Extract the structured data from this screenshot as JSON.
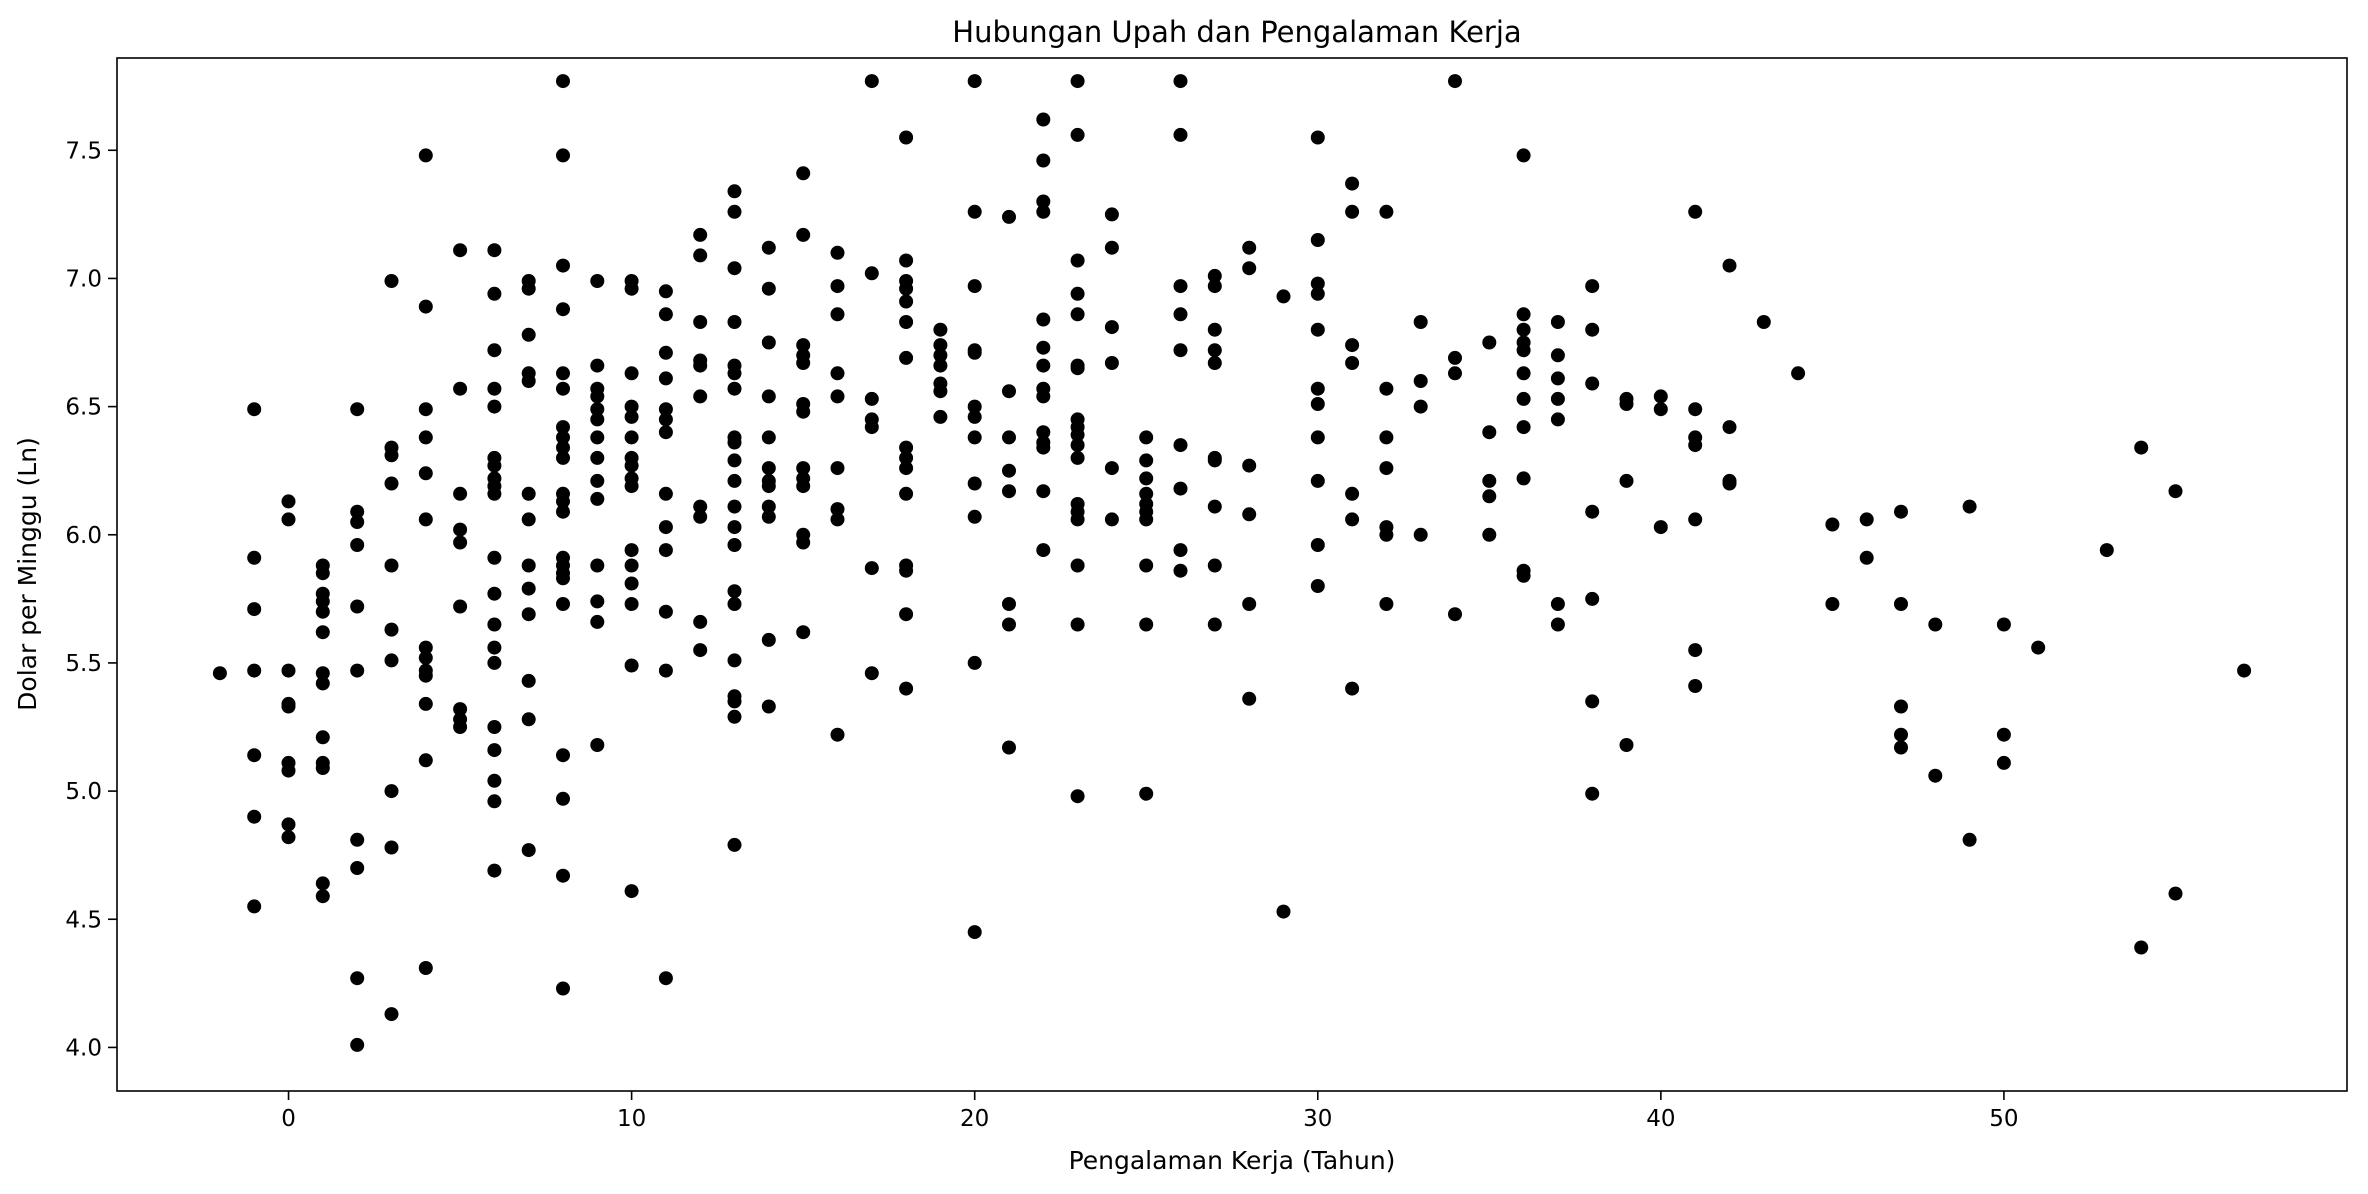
{
  "chart_data": {
    "type": "scatter",
    "title": "Hubungan Upah dan Pengalaman Kerja",
    "xlabel": "Pengalaman Kerja (Tahun)",
    "ylabel": "Dolar per Minggu (Ln)",
    "xlim": [
      -5,
      60
    ],
    "ylim": [
      3.83,
      7.86
    ],
    "xticks": [
      0,
      10,
      20,
      30,
      40,
      50
    ],
    "yticks": [
      4.0,
      4.5,
      5.0,
      5.5,
      6.0,
      6.5,
      7.0,
      7.5
    ],
    "grid": false,
    "legend": "none",
    "marker_color": "#000000",
    "points": [
      [
        -2,
        5.46
      ],
      [
        -1,
        6.49
      ],
      [
        -1,
        5.91
      ],
      [
        -1,
        5.71
      ],
      [
        -1,
        5.47
      ],
      [
        -1,
        5.14
      ],
      [
        -1,
        4.9
      ],
      [
        -1,
        4.55
      ],
      [
        0,
        6.13
      ],
      [
        0,
        6.06
      ],
      [
        0,
        5.47
      ],
      [
        0,
        5.34
      ],
      [
        0,
        5.33
      ],
      [
        0,
        5.11
      ],
      [
        0,
        5.08
      ],
      [
        0,
        4.87
      ],
      [
        0,
        4.82
      ],
      [
        1,
        5.88
      ],
      [
        1,
        5.85
      ],
      [
        1,
        5.77
      ],
      [
        1,
        5.74
      ],
      [
        1,
        5.7
      ],
      [
        1,
        5.62
      ],
      [
        1,
        5.46
      ],
      [
        1,
        5.42
      ],
      [
        1,
        5.21
      ],
      [
        1,
        5.11
      ],
      [
        1,
        5.09
      ],
      [
        1,
        4.64
      ],
      [
        1,
        4.59
      ],
      [
        2,
        6.49
      ],
      [
        2,
        6.09
      ],
      [
        2,
        6.05
      ],
      [
        2,
        5.96
      ],
      [
        2,
        5.72
      ],
      [
        2,
        5.47
      ],
      [
        2,
        4.81
      ],
      [
        2,
        4.7
      ],
      [
        2,
        4.27
      ],
      [
        2,
        4.01
      ],
      [
        3,
        6.99
      ],
      [
        3,
        6.34
      ],
      [
        3,
        6.31
      ],
      [
        3,
        6.2
      ],
      [
        3,
        5.88
      ],
      [
        3,
        5.63
      ],
      [
        3,
        5.51
      ],
      [
        3,
        5.0
      ],
      [
        3,
        4.78
      ],
      [
        3,
        4.13
      ],
      [
        4,
        7.48
      ],
      [
        4,
        6.89
      ],
      [
        4,
        6.49
      ],
      [
        4,
        6.38
      ],
      [
        4,
        6.24
      ],
      [
        4,
        6.06
      ],
      [
        4,
        5.56
      ],
      [
        4,
        5.52
      ],
      [
        4,
        5.47
      ],
      [
        4,
        5.45
      ],
      [
        4,
        5.34
      ],
      [
        4,
        5.12
      ],
      [
        4,
        4.31
      ],
      [
        5,
        7.11
      ],
      [
        5,
        6.57
      ],
      [
        5,
        6.16
      ],
      [
        5,
        6.02
      ],
      [
        5,
        5.97
      ],
      [
        5,
        5.72
      ],
      [
        5,
        5.32
      ],
      [
        5,
        5.28
      ],
      [
        5,
        5.25
      ],
      [
        6,
        7.11
      ],
      [
        6,
        6.94
      ],
      [
        6,
        6.72
      ],
      [
        6,
        6.57
      ],
      [
        6,
        6.5
      ],
      [
        6,
        6.3
      ],
      [
        6,
        6.27
      ],
      [
        6,
        6.22
      ],
      [
        6,
        6.19
      ],
      [
        6,
        6.16
      ],
      [
        6,
        5.91
      ],
      [
        6,
        5.77
      ],
      [
        6,
        5.65
      ],
      [
        6,
        5.56
      ],
      [
        6,
        5.5
      ],
      [
        6,
        5.25
      ],
      [
        6,
        5.16
      ],
      [
        6,
        5.04
      ],
      [
        6,
        4.96
      ],
      [
        6,
        4.69
      ],
      [
        7,
        6.99
      ],
      [
        7,
        6.96
      ],
      [
        7,
        6.78
      ],
      [
        7,
        6.63
      ],
      [
        7,
        6.6
      ],
      [
        7,
        6.16
      ],
      [
        7,
        6.06
      ],
      [
        7,
        5.88
      ],
      [
        7,
        5.79
      ],
      [
        7,
        5.69
      ],
      [
        7,
        5.43
      ],
      [
        7,
        5.28
      ],
      [
        7,
        4.77
      ],
      [
        8,
        7.77
      ],
      [
        8,
        7.48
      ],
      [
        8,
        7.05
      ],
      [
        8,
        6.88
      ],
      [
        8,
        6.63
      ],
      [
        8,
        6.57
      ],
      [
        8,
        6.42
      ],
      [
        8,
        6.38
      ],
      [
        8,
        6.34
      ],
      [
        8,
        6.3
      ],
      [
        8,
        6.16
      ],
      [
        8,
        6.13
      ],
      [
        8,
        6.09
      ],
      [
        8,
        5.91
      ],
      [
        8,
        5.88
      ],
      [
        8,
        5.85
      ],
      [
        8,
        5.83
      ],
      [
        8,
        5.73
      ],
      [
        8,
        5.14
      ],
      [
        8,
        4.97
      ],
      [
        8,
        4.67
      ],
      [
        8,
        4.23
      ],
      [
        9,
        6.99
      ],
      [
        9,
        6.66
      ],
      [
        9,
        6.57
      ],
      [
        9,
        6.54
      ],
      [
        9,
        6.49
      ],
      [
        9,
        6.45
      ],
      [
        9,
        6.38
      ],
      [
        9,
        6.3
      ],
      [
        9,
        6.21
      ],
      [
        9,
        6.14
      ],
      [
        9,
        5.88
      ],
      [
        9,
        5.74
      ],
      [
        9,
        5.66
      ],
      [
        9,
        5.18
      ],
      [
        10,
        6.99
      ],
      [
        10,
        6.96
      ],
      [
        10,
        6.63
      ],
      [
        10,
        6.5
      ],
      [
        10,
        6.46
      ],
      [
        10,
        6.38
      ],
      [
        10,
        6.3
      ],
      [
        10,
        6.27
      ],
      [
        10,
        6.22
      ],
      [
        10,
        6.19
      ],
      [
        10,
        5.94
      ],
      [
        10,
        5.88
      ],
      [
        10,
        5.81
      ],
      [
        10,
        5.73
      ],
      [
        10,
        5.49
      ],
      [
        10,
        4.61
      ],
      [
        11,
        6.95
      ],
      [
        11,
        6.86
      ],
      [
        11,
        6.71
      ],
      [
        11,
        6.61
      ],
      [
        11,
        6.49
      ],
      [
        11,
        6.45
      ],
      [
        11,
        6.4
      ],
      [
        11,
        6.16
      ],
      [
        11,
        6.03
      ],
      [
        11,
        5.94
      ],
      [
        11,
        5.7
      ],
      [
        11,
        5.47
      ],
      [
        11,
        4.27
      ],
      [
        12,
        7.17
      ],
      [
        12,
        7.09
      ],
      [
        12,
        6.83
      ],
      [
        12,
        6.68
      ],
      [
        12,
        6.66
      ],
      [
        12,
        6.54
      ],
      [
        12,
        6.11
      ],
      [
        12,
        6.07
      ],
      [
        12,
        5.66
      ],
      [
        12,
        5.55
      ],
      [
        13,
        7.34
      ],
      [
        13,
        7.26
      ],
      [
        13,
        7.04
      ],
      [
        13,
        6.83
      ],
      [
        13,
        6.66
      ],
      [
        13,
        6.63
      ],
      [
        13,
        6.57
      ],
      [
        13,
        6.38
      ],
      [
        13,
        6.36
      ],
      [
        13,
        6.29
      ],
      [
        13,
        6.21
      ],
      [
        13,
        6.11
      ],
      [
        13,
        6.03
      ],
      [
        13,
        5.96
      ],
      [
        13,
        5.78
      ],
      [
        13,
        5.73
      ],
      [
        13,
        5.51
      ],
      [
        13,
        5.37
      ],
      [
        13,
        5.35
      ],
      [
        13,
        5.29
      ],
      [
        13,
        4.79
      ],
      [
        14,
        7.12
      ],
      [
        14,
        6.96
      ],
      [
        14,
        6.75
      ],
      [
        14,
        6.54
      ],
      [
        14,
        6.38
      ],
      [
        14,
        6.26
      ],
      [
        14,
        6.21
      ],
      [
        14,
        6.19
      ],
      [
        14,
        6.11
      ],
      [
        14,
        6.07
      ],
      [
        14,
        5.59
      ],
      [
        14,
        5.33
      ],
      [
        15,
        7.41
      ],
      [
        15,
        7.17
      ],
      [
        15,
        6.74
      ],
      [
        15,
        6.7
      ],
      [
        15,
        6.67
      ],
      [
        15,
        6.51
      ],
      [
        15,
        6.48
      ],
      [
        15,
        6.26
      ],
      [
        15,
        6.22
      ],
      [
        15,
        6.19
      ],
      [
        15,
        6.0
      ],
      [
        15,
        5.97
      ],
      [
        15,
        5.62
      ],
      [
        16,
        7.1
      ],
      [
        16,
        6.97
      ],
      [
        16,
        6.86
      ],
      [
        16,
        6.63
      ],
      [
        16,
        6.54
      ],
      [
        16,
        6.26
      ],
      [
        16,
        6.1
      ],
      [
        16,
        6.06
      ],
      [
        16,
        5.22
      ],
      [
        17,
        7.77
      ],
      [
        17,
        7.02
      ],
      [
        17,
        6.53
      ],
      [
        17,
        6.45
      ],
      [
        17,
        6.42
      ],
      [
        17,
        5.87
      ],
      [
        17,
        5.46
      ],
      [
        18,
        7.55
      ],
      [
        18,
        7.07
      ],
      [
        18,
        6.99
      ],
      [
        18,
        6.96
      ],
      [
        18,
        6.91
      ],
      [
        18,
        6.83
      ],
      [
        18,
        6.69
      ],
      [
        18,
        6.34
      ],
      [
        18,
        6.3
      ],
      [
        18,
        6.26
      ],
      [
        18,
        6.16
      ],
      [
        18,
        5.88
      ],
      [
        18,
        5.86
      ],
      [
        18,
        5.69
      ],
      [
        18,
        5.4
      ],
      [
        19,
        6.8
      ],
      [
        19,
        6.74
      ],
      [
        19,
        6.7
      ],
      [
        19,
        6.66
      ],
      [
        19,
        6.59
      ],
      [
        19,
        6.56
      ],
      [
        19,
        6.46
      ],
      [
        20,
        7.77
      ],
      [
        20,
        7.26
      ],
      [
        20,
        6.97
      ],
      [
        20,
        6.72
      ],
      [
        20,
        6.71
      ],
      [
        20,
        6.5
      ],
      [
        20,
        6.46
      ],
      [
        20,
        6.38
      ],
      [
        20,
        6.2
      ],
      [
        20,
        6.07
      ],
      [
        20,
        5.5
      ],
      [
        20,
        4.45
      ],
      [
        21,
        7.24
      ],
      [
        21,
        6.56
      ],
      [
        21,
        6.38
      ],
      [
        21,
        6.25
      ],
      [
        21,
        6.17
      ],
      [
        21,
        5.73
      ],
      [
        21,
        5.65
      ],
      [
        21,
        5.17
      ],
      [
        22,
        7.62
      ],
      [
        22,
        7.46
      ],
      [
        22,
        7.3
      ],
      [
        22,
        7.26
      ],
      [
        22,
        6.84
      ],
      [
        22,
        6.73
      ],
      [
        22,
        6.66
      ],
      [
        22,
        6.57
      ],
      [
        22,
        6.54
      ],
      [
        22,
        6.4
      ],
      [
        22,
        6.36
      ],
      [
        22,
        6.34
      ],
      [
        22,
        6.17
      ],
      [
        22,
        5.94
      ],
      [
        23,
        7.77
      ],
      [
        23,
        7.56
      ],
      [
        23,
        7.07
      ],
      [
        23,
        6.94
      ],
      [
        23,
        6.86
      ],
      [
        23,
        6.66
      ],
      [
        23,
        6.65
      ],
      [
        23,
        6.45
      ],
      [
        23,
        6.42
      ],
      [
        23,
        6.39
      ],
      [
        23,
        6.35
      ],
      [
        23,
        6.3
      ],
      [
        23,
        6.12
      ],
      [
        23,
        6.09
      ],
      [
        23,
        6.06
      ],
      [
        23,
        5.88
      ],
      [
        23,
        5.65
      ],
      [
        23,
        4.98
      ],
      [
        24,
        7.25
      ],
      [
        24,
        7.12
      ],
      [
        24,
        6.81
      ],
      [
        24,
        6.67
      ],
      [
        24,
        6.26
      ],
      [
        24,
        6.06
      ],
      [
        25,
        6.38
      ],
      [
        25,
        6.29
      ],
      [
        25,
        6.22
      ],
      [
        25,
        6.16
      ],
      [
        25,
        6.12
      ],
      [
        25,
        6.09
      ],
      [
        25,
        6.06
      ],
      [
        25,
        5.88
      ],
      [
        25,
        5.65
      ],
      [
        25,
        4.99
      ],
      [
        26,
        7.77
      ],
      [
        26,
        7.56
      ],
      [
        26,
        6.97
      ],
      [
        26,
        6.86
      ],
      [
        26,
        6.72
      ],
      [
        26,
        6.35
      ],
      [
        26,
        6.18
      ],
      [
        26,
        5.94
      ],
      [
        26,
        5.86
      ],
      [
        27,
        7.01
      ],
      [
        27,
        6.97
      ],
      [
        27,
        6.8
      ],
      [
        27,
        6.72
      ],
      [
        27,
        6.67
      ],
      [
        27,
        6.3
      ],
      [
        27,
        6.29
      ],
      [
        27,
        6.11
      ],
      [
        27,
        5.88
      ],
      [
        27,
        5.65
      ],
      [
        28,
        7.12
      ],
      [
        28,
        7.04
      ],
      [
        28,
        6.27
      ],
      [
        28,
        6.08
      ],
      [
        28,
        5.73
      ],
      [
        28,
        5.36
      ],
      [
        29,
        6.93
      ],
      [
        29,
        4.53
      ],
      [
        30,
        7.55
      ],
      [
        30,
        7.15
      ],
      [
        30,
        6.98
      ],
      [
        30,
        6.94
      ],
      [
        30,
        6.8
      ],
      [
        30,
        6.57
      ],
      [
        30,
        6.51
      ],
      [
        30,
        6.38
      ],
      [
        30,
        6.21
      ],
      [
        30,
        5.96
      ],
      [
        30,
        5.8
      ],
      [
        31,
        7.37
      ],
      [
        31,
        7.26
      ],
      [
        31,
        6.74
      ],
      [
        31,
        6.67
      ],
      [
        31,
        6.16
      ],
      [
        31,
        6.06
      ],
      [
        31,
        5.4
      ],
      [
        32,
        7.26
      ],
      [
        32,
        6.57
      ],
      [
        32,
        6.38
      ],
      [
        32,
        6.26
      ],
      [
        32,
        6.03
      ],
      [
        32,
        6.0
      ],
      [
        32,
        5.73
      ],
      [
        33,
        6.83
      ],
      [
        33,
        6.6
      ],
      [
        33,
        6.5
      ],
      [
        33,
        6.0
      ],
      [
        34,
        7.77
      ],
      [
        34,
        6.69
      ],
      [
        34,
        6.63
      ],
      [
        34,
        5.69
      ],
      [
        35,
        6.75
      ],
      [
        35,
        6.4
      ],
      [
        35,
        6.21
      ],
      [
        35,
        6.15
      ],
      [
        35,
        6.0
      ],
      [
        36,
        7.48
      ],
      [
        36,
        6.86
      ],
      [
        36,
        6.8
      ],
      [
        36,
        6.75
      ],
      [
        36,
        6.72
      ],
      [
        36,
        6.63
      ],
      [
        36,
        6.53
      ],
      [
        36,
        6.42
      ],
      [
        36,
        6.22
      ],
      [
        36,
        5.86
      ],
      [
        36,
        5.84
      ],
      [
        37,
        6.83
      ],
      [
        37,
        6.7
      ],
      [
        37,
        6.61
      ],
      [
        37,
        6.53
      ],
      [
        37,
        6.45
      ],
      [
        37,
        5.73
      ],
      [
        37,
        5.65
      ],
      [
        38,
        6.97
      ],
      [
        38,
        6.8
      ],
      [
        38,
        6.59
      ],
      [
        38,
        6.09
      ],
      [
        38,
        5.75
      ],
      [
        38,
        5.35
      ],
      [
        38,
        4.99
      ],
      [
        39,
        6.53
      ],
      [
        39,
        6.51
      ],
      [
        39,
        6.21
      ],
      [
        39,
        5.18
      ],
      [
        40,
        6.54
      ],
      [
        40,
        6.49
      ],
      [
        40,
        6.03
      ],
      [
        41,
        7.26
      ],
      [
        41,
        6.49
      ],
      [
        41,
        6.38
      ],
      [
        41,
        6.35
      ],
      [
        41,
        6.06
      ],
      [
        41,
        5.55
      ],
      [
        41,
        5.41
      ],
      [
        42,
        7.05
      ],
      [
        42,
        6.42
      ],
      [
        42,
        6.21
      ],
      [
        42,
        6.2
      ],
      [
        43,
        6.83
      ],
      [
        44,
        6.63
      ],
      [
        45,
        6.04
      ],
      [
        45,
        5.73
      ],
      [
        46,
        6.06
      ],
      [
        46,
        5.91
      ],
      [
        47,
        6.09
      ],
      [
        47,
        5.73
      ],
      [
        47,
        5.33
      ],
      [
        47,
        5.22
      ],
      [
        47,
        5.17
      ],
      [
        48,
        5.65
      ],
      [
        48,
        5.06
      ],
      [
        49,
        6.11
      ],
      [
        49,
        4.81
      ],
      [
        50,
        5.65
      ],
      [
        50,
        5.22
      ],
      [
        50,
        5.11
      ],
      [
        51,
        5.56
      ],
      [
        53,
        5.94
      ],
      [
        54,
        6.34
      ],
      [
        54,
        4.39
      ],
      [
        55,
        6.17
      ],
      [
        55,
        4.6
      ],
      [
        57,
        5.47
      ]
    ]
  }
}
